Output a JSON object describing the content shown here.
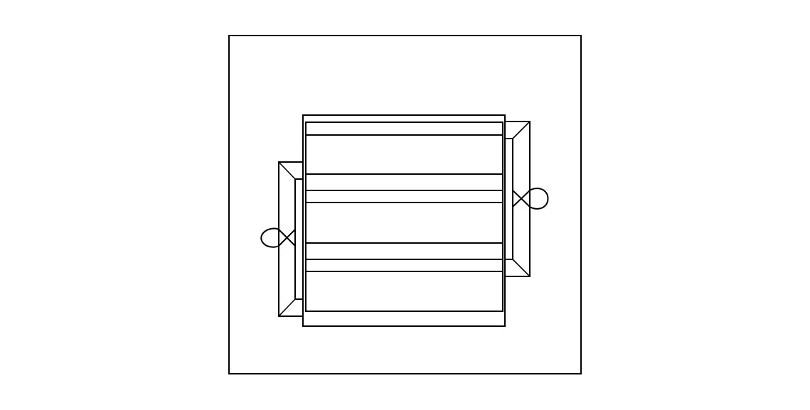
{
  "drawing": {
    "stroke_color": "#000000",
    "background_color": "#ffffff",
    "labels": []
  }
}
